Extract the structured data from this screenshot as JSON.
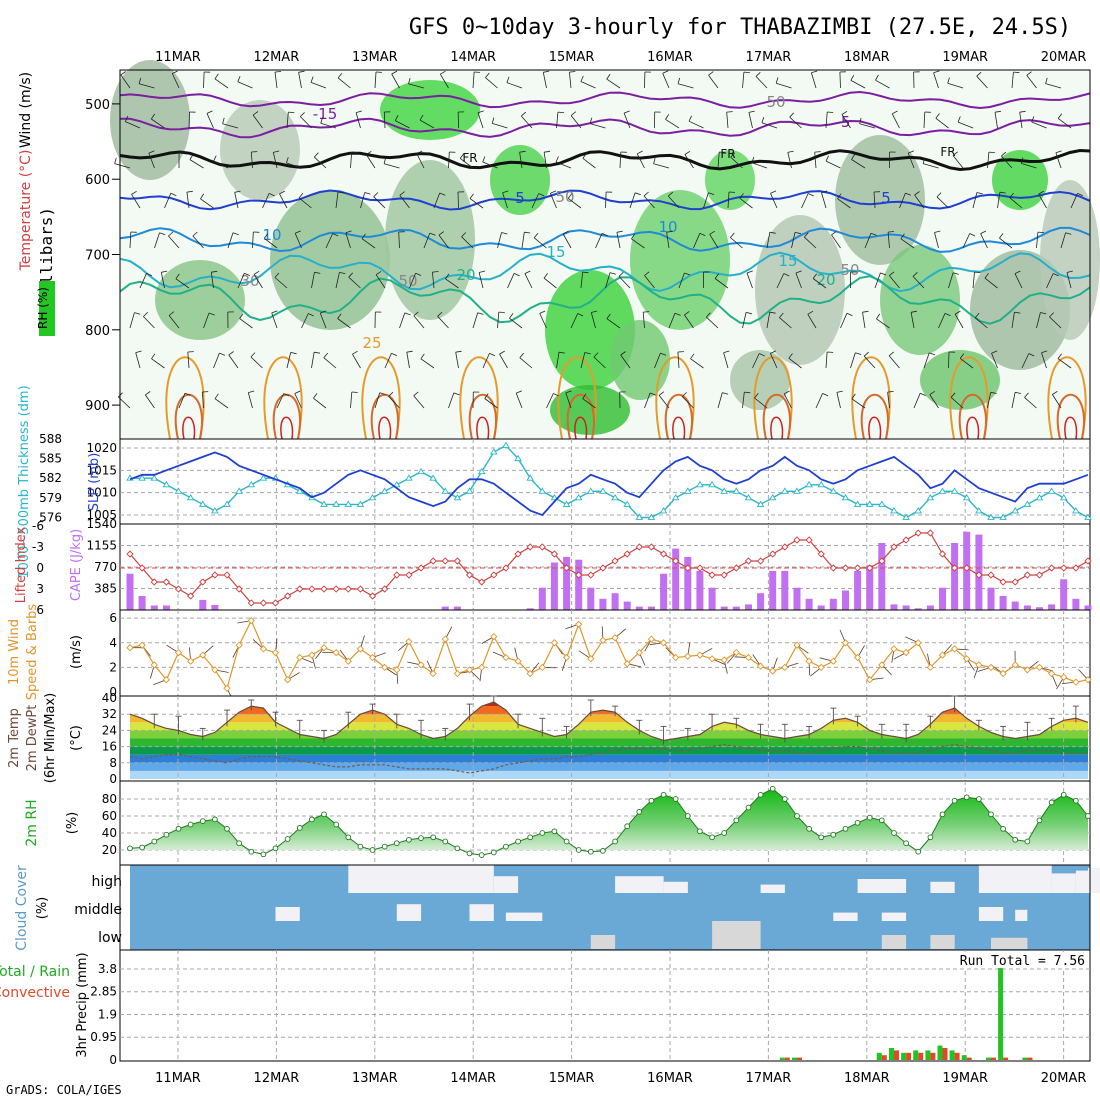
{
  "title": "GFS 0~10day 3-hourly for THABAZIMBI (27.5E, 24.5S)",
  "credit": "GrADS: COLA/IGES",
  "dates": [
    "11MAR",
    "12MAR",
    "13MAR",
    "14MAR",
    "15MAR",
    "16MAR",
    "17MAR",
    "18MAR",
    "19MAR",
    "20MAR"
  ],
  "colors": {
    "slp": "#1f3fd0",
    "thick": "#29b6c8",
    "lifted": "#d04040",
    "cape": "#c070f0",
    "wind": "#e0962c",
    "temp": "#6b4a3a",
    "dew": "#8a6a5a",
    "rh": "#22aa22",
    "cloud": "#6aa9d6",
    "cloudwhite": "#f2f2f6",
    "rain": "#22c322",
    "conv": "#e04a2a",
    "grid": "#a8a8a8"
  },
  "panels": {
    "upper": {
      "ylabel": "(millibars)",
      "legend_wind": "Wind (m/s)",
      "legend_temp": "Temperature (°C)",
      "legend_rh": "RH (%)",
      "yticks": [
        500,
        600,
        700,
        800,
        900
      ],
      "contour_labels": [
        "-15",
        "-5",
        "FR",
        "FR",
        "FR",
        "5",
        "5",
        "10",
        "10",
        "15",
        "15",
        "20",
        "20",
        "25",
        "50",
        "50",
        "50",
        "30",
        "50"
      ]
    },
    "slp": {
      "ylabel_thick": "1000~500mb Thickness (dm)",
      "ylabel_slp": "SLP (mb)",
      "thick_ticks": [
        588,
        585,
        582,
        579,
        576
      ],
      "slp_ticks": [
        1020,
        1015,
        1010,
        1005
      ],
      "slp_ylim": [
        1003,
        1022
      ],
      "thick_ylim": [
        575,
        588
      ]
    },
    "cape": {
      "ylabel_li": "Lifted Index",
      "ylabel_cape": "CAPE (J/kg)",
      "li_ticks": [
        "-6",
        "-3",
        "0",
        "3",
        "6"
      ],
      "cape_ticks": [
        "1540",
        "1155",
        "770",
        "385"
      ]
    },
    "wind": {
      "ylabel": "10m Wind",
      "ylabel2": "Speed & Barbs",
      "ylabel3": "(m/s)",
      "yticks": [
        "6",
        "4",
        "2",
        "0"
      ],
      "ylim": [
        0,
        6.5
      ]
    },
    "temp": {
      "ylabel1": "2m Temp",
      "ylabel2": "2m DewPt",
      "ylabel3": "(6hr Min/Max)",
      "ylabel4": "(°C)",
      "yticks": [
        "40",
        "32",
        "24",
        "16",
        "8",
        "0"
      ],
      "ylim": [
        0,
        40
      ]
    },
    "rh": {
      "ylabel": "2m RH",
      "ylabel2": "(%)",
      "yticks": [
        "80",
        "60",
        "40",
        "20"
      ],
      "ylim": [
        10,
        95
      ]
    },
    "cloud": {
      "ylabel": "Cloud Cover",
      "ylabel2": "(%)",
      "levels": [
        "high",
        "middle",
        "low"
      ]
    },
    "precip": {
      "ylabel": "3hr Precip (mm)",
      "legend_total": "Total / Rain",
      "legend_conv": "Convective",
      "yticks": [
        "3.8",
        "2.85",
        "1.9",
        "0.95",
        "0"
      ],
      "run_total": "Run Total = 7.56",
      "ylim": [
        0,
        4.3
      ]
    }
  },
  "chart_data": [
    {
      "type": "line",
      "title": "SLP (mb)",
      "x": "3-hourly steps 0..79 from 10MAR 12Z",
      "series": [
        {
          "name": "SLP",
          "values": [
            1013,
            1014,
            1014,
            1015,
            1016,
            1017,
            1018,
            1019,
            1018,
            1016,
            1015,
            1014,
            1013,
            1012,
            1011,
            1009,
            1010,
            1012,
            1014,
            1015,
            1014,
            1013,
            1011,
            1009,
            1008,
            1007,
            1008,
            1011,
            1013,
            1013,
            1012,
            1010,
            1008,
            1006,
            1005,
            1008,
            1011,
            1012,
            1014,
            1013,
            1012,
            1010,
            1009,
            1012,
            1015,
            1017,
            1018,
            1016,
            1015,
            1013,
            1012,
            1013,
            1015,
            1016,
            1018,
            1016,
            1015,
            1013,
            1012,
            1013,
            1015,
            1016,
            1017,
            1018,
            1016,
            1014,
            1011,
            1012,
            1015,
            1013,
            1011,
            1010,
            1009,
            1008,
            1011,
            1012,
            1012,
            1012,
            1013,
            1014
          ]
        },
        {
          "name": "Thickness",
          "values": [
            582,
            582,
            582,
            581,
            580,
            579,
            578,
            577,
            578,
            580,
            581,
            582,
            582,
            581,
            580,
            579,
            578,
            578,
            578,
            578,
            579,
            580,
            581,
            582,
            583,
            582,
            580,
            579,
            580,
            583,
            586,
            587,
            585,
            582,
            580,
            579,
            578,
            579,
            580,
            580,
            579,
            578,
            576,
            576,
            577,
            579,
            580,
            581,
            581,
            580,
            580,
            579,
            578,
            579,
            580,
            580,
            581,
            581,
            580,
            579,
            578,
            578,
            578,
            577,
            576,
            577,
            579,
            580,
            580,
            579,
            577,
            576,
            576,
            577,
            578,
            579,
            580,
            579,
            577,
            576
          ]
        }
      ],
      "ylim_slp": [
        1003,
        1022
      ]
    },
    {
      "type": "bar",
      "title": "CAPE (J/kg) & Lifted Index",
      "series": [
        {
          "name": "CAPE",
          "values": [
            650,
            250,
            80,
            80,
            0,
            0,
            180,
            90,
            0,
            0,
            0,
            0,
            0,
            0,
            0,
            0,
            0,
            0,
            0,
            0,
            0,
            0,
            0,
            0,
            0,
            0,
            60,
            60,
            0,
            0,
            0,
            0,
            0,
            0,
            0,
            0,
            0,
            0,
            0,
            0,
            0,
            0,
            0,
            0,
            0,
            0,
            0,
            0,
            0,
            0,
            0,
            0,
            0,
            0,
            0,
            0,
            0,
            0,
            0,
            0,
            0,
            0,
            0,
            0,
            0,
            0,
            0,
            0,
            0,
            0,
            0,
            0,
            0,
            0,
            0,
            0,
            0,
            0,
            0,
            0
          ]
        },
        {
          "name": "Lifted Index",
          "values": [
            -2,
            0,
            2,
            2,
            3,
            4,
            2,
            1,
            1,
            3,
            5,
            5,
            5,
            4,
            3,
            3,
            3,
            3,
            3,
            3,
            4,
            3,
            1,
            1,
            0,
            -1,
            -1,
            -1,
            1,
            2,
            1,
            0,
            -2,
            -3,
            -3,
            -2,
            0,
            1,
            1,
            0,
            -1,
            -2,
            -3,
            -3,
            -2,
            -1,
            0,
            0,
            1,
            1,
            0,
            -1,
            -1,
            -2,
            -3,
            -4,
            -4,
            -2,
            0,
            0,
            0,
            0,
            -1,
            -3,
            -4,
            -5,
            -5,
            -2,
            0,
            0,
            1,
            1,
            2,
            2,
            1,
            1,
            0,
            0,
            0,
            -1
          ]
        }
      ],
      "ylim": [
        0,
        1540
      ]
    },
    {
      "type": "line",
      "title": "10m Wind Speed (m/s)",
      "series": [
        {
          "name": "Speed",
          "values": [
            3.6,
            3.8,
            2.2,
            1.0,
            3.2,
            2.5,
            3.0,
            1.8,
            0.3,
            3.8,
            5.8,
            3.5,
            3.2,
            1.0,
            2.8,
            3.0,
            3.6,
            3.2,
            2.5,
            3.5,
            2.8,
            2.0,
            1.8,
            4.1,
            2.2,
            1.5,
            4.3,
            1.5,
            1.8,
            2.0,
            4.5,
            2.8,
            2.5,
            1.5,
            2.0,
            4.0,
            2.8,
            5.5,
            2.7,
            4.2,
            4.4,
            2.3,
            3.2,
            4.3,
            4.0,
            2.8,
            2.9,
            3.0,
            2.7,
            2.6,
            3.2,
            2.8,
            2.1,
            1.7,
            2.0,
            3.8,
            2.5,
            2.0,
            2.5,
            4.0,
            2.8,
            1.0,
            2.2,
            3.5,
            3.2,
            4.0,
            2.0,
            3.0,
            3.5,
            2.7,
            2.2,
            2.0,
            1.5,
            2.2,
            1.8,
            2.0,
            1.5,
            1.2,
            0.8,
            1.0
          ]
        }
      ],
      "ylim": [
        0,
        6.5
      ]
    },
    {
      "type": "area",
      "title": "2m Temp / DewPt (°C)",
      "series": [
        {
          "name": "Temp",
          "values": [
            32,
            30,
            27,
            25,
            24,
            22,
            21,
            23,
            28,
            33,
            36,
            35,
            28,
            25,
            22,
            21,
            20,
            22,
            27,
            32,
            34,
            32,
            27,
            25,
            22,
            20,
            21,
            25,
            31,
            36,
            38,
            34,
            27,
            25,
            23,
            21,
            22,
            27,
            33,
            34,
            33,
            28,
            24,
            21,
            19,
            20,
            21,
            22,
            26,
            28,
            27,
            24,
            22,
            21,
            20,
            21,
            22,
            25,
            29,
            30,
            28,
            24,
            22,
            21,
            20,
            22,
            27,
            33,
            35,
            30,
            26,
            23,
            21,
            20,
            21,
            22,
            26,
            29,
            30,
            28
          ]
        },
        {
          "name": "DewPt",
          "values": [
            11,
            10,
            11,
            12,
            12,
            11,
            10,
            9,
            8,
            10,
            11,
            11,
            11,
            10,
            9,
            8,
            7,
            6,
            6,
            7,
            7,
            7,
            6,
            5,
            5,
            5,
            5,
            4,
            3,
            4,
            5,
            7,
            8,
            9,
            10,
            10,
            11,
            11,
            12,
            13,
            14,
            15,
            15,
            15,
            15,
            14,
            14,
            15,
            16,
            17,
            16,
            15,
            14,
            14,
            14,
            13,
            13,
            14,
            15,
            16,
            16,
            15,
            14,
            13,
            13,
            13,
            14,
            16,
            17,
            16,
            15,
            14,
            13,
            13,
            14,
            14,
            14,
            13,
            13,
            13
          ]
        }
      ],
      "ylim": [
        0,
        40
      ]
    },
    {
      "type": "area",
      "title": "2m RH (%)",
      "series": [
        {
          "name": "RH",
          "values": [
            22,
            23,
            30,
            38,
            45,
            50,
            54,
            56,
            45,
            28,
            18,
            15,
            22,
            33,
            46,
            56,
            62,
            50,
            35,
            24,
            20,
            24,
            28,
            32,
            34,
            35,
            30,
            22,
            16,
            14,
            17,
            24,
            30,
            35,
            40,
            42,
            30,
            20,
            18,
            19,
            30,
            48,
            65,
            78,
            85,
            80,
            60,
            42,
            35,
            40,
            55,
            70,
            85,
            92,
            80,
            60,
            45,
            35,
            38,
            45,
            52,
            58,
            55,
            40,
            28,
            18,
            35,
            62,
            78,
            82,
            80,
            62,
            45,
            32,
            30,
            55,
            76,
            85,
            78,
            60
          ]
        }
      ],
      "ylim": [
        10,
        95
      ]
    },
    {
      "type": "bar",
      "title": "3hr Precip (mm)",
      "series": [
        {
          "name": "Total/Rain",
          "values": [
            0,
            0,
            0,
            0,
            0,
            0,
            0,
            0,
            0,
            0,
            0,
            0,
            0,
            0,
            0,
            0,
            0,
            0,
            0,
            0,
            0,
            0,
            0,
            0,
            0,
            0,
            0,
            0,
            0,
            0,
            0,
            0,
            0,
            0,
            0,
            0,
            0,
            0,
            0,
            0,
            0,
            0,
            0,
            0,
            0,
            0,
            0,
            0,
            0,
            0,
            0,
            0,
            0,
            0,
            0.1,
            0.1,
            0,
            0,
            0,
            0,
            0,
            0,
            0.3,
            0.5,
            0.3,
            0.4,
            0.4,
            0.6,
            0.4,
            0.2,
            0,
            0.1,
            4.3,
            0,
            0.1,
            0,
            0,
            0,
            0,
            0
          ]
        },
        {
          "name": "Convective",
          "values": [
            0,
            0,
            0,
            0,
            0,
            0,
            0,
            0,
            0,
            0,
            0,
            0,
            0,
            0,
            0,
            0,
            0,
            0,
            0,
            0,
            0,
            0,
            0,
            0,
            0,
            0,
            0,
            0,
            0,
            0,
            0,
            0,
            0,
            0,
            0,
            0,
            0,
            0,
            0,
            0,
            0,
            0,
            0,
            0,
            0,
            0,
            0,
            0,
            0,
            0,
            0,
            0,
            0,
            0,
            0.1,
            0.1,
            0,
            0,
            0,
            0,
            0,
            0,
            0.2,
            0.4,
            0.3,
            0.3,
            0.3,
            0.5,
            0.3,
            0.1,
            0,
            0.1,
            0.1,
            0,
            0.1,
            0,
            0,
            0,
            0,
            0
          ]
        }
      ],
      "ylim": [
        0,
        4.3
      ]
    }
  ]
}
